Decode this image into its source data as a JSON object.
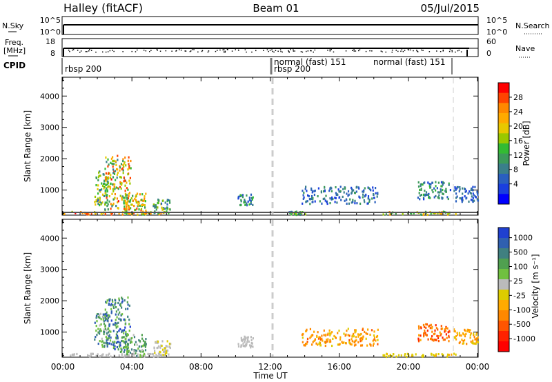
{
  "header": {
    "left": "Halley (fitACF)",
    "center": "Beam 01",
    "right": "05/Jul/2015"
  },
  "panels": {
    "nsky": {
      "left_label": "N.Sky",
      "right_label": "N.Search",
      "ticks_left": [
        "10^5",
        "10^0"
      ],
      "ticks_right": [
        "10^5",
        "10^0"
      ]
    },
    "freq": {
      "left_label_1": "Freq.",
      "left_label_2": "[MHz]",
      "right_label": "Nave",
      "ticks_left": [
        "18",
        "8"
      ],
      "ticks_right": [
        "60",
        "0"
      ]
    },
    "cpid": {
      "label": "CPID",
      "segments": [
        {
          "start": 0,
          "end": 12,
          "text": "rbsp 200"
        },
        {
          "start": 12,
          "end": 12.05,
          "text": "rbsp 200"
        },
        {
          "start": 12.05,
          "end": 19,
          "text": "normal (fast) 151"
        },
        {
          "start": 19,
          "end": 22.6,
          "text": "normal (fast) 151"
        }
      ]
    }
  },
  "colorbars": {
    "power": {
      "title": "Power [dB]",
      "ticks": [
        "28",
        "24",
        "20",
        "16",
        "12",
        "8",
        "4"
      ],
      "colors": [
        "#ff0000",
        "#ff4400",
        "#ff8800",
        "#ffaa00",
        "#e8c800",
        "#99c800",
        "#33bb33",
        "#3c9a5a",
        "#3a7f8a",
        "#2a5fbf",
        "#1a3fdf",
        "#0000ff"
      ]
    },
    "velocity": {
      "title": "Velocity [m s⁻¹]",
      "ticks": [
        "1000",
        "500",
        "100",
        "25",
        "-25",
        "-100",
        "-500",
        "-1000"
      ],
      "colors": [
        "#2040d0",
        "#3060b0",
        "#408080",
        "#50a050",
        "#70c040",
        "#bbbbbb",
        "#ddcc00",
        "#ffaa00",
        "#ff8800",
        "#ff5500",
        "#ff2200",
        "#ff0000"
      ]
    }
  },
  "chart_data": [
    {
      "type": "heatmap",
      "name_hidden": "power",
      "ylabel": "Slant Range [km]",
      "yticks": [
        "1000",
        "2000",
        "3000",
        "4000"
      ],
      "ylim": [
        200,
        4600
      ],
      "xlim": [
        0,
        24
      ],
      "clusters": [
        {
          "t0": 0.0,
          "t1": 5.8,
          "r0": 200,
          "r1": 300,
          "v0": 14,
          "v1": 28
        },
        {
          "t0": 1.8,
          "t1": 2.6,
          "r0": 500,
          "r1": 1600,
          "v0": 6,
          "v1": 20
        },
        {
          "t0": 2.4,
          "t1": 3.9,
          "r0": 350,
          "r1": 2100,
          "v0": 8,
          "v1": 28
        },
        {
          "t0": 3.5,
          "t1": 4.8,
          "r0": 200,
          "r1": 900,
          "v0": 12,
          "v1": 26
        },
        {
          "t0": 5.2,
          "t1": 6.2,
          "r0": 250,
          "r1": 700,
          "v0": 6,
          "v1": 18
        },
        {
          "t0": 10.1,
          "t1": 11.0,
          "r0": 500,
          "r1": 850,
          "v0": 4,
          "v1": 14
        },
        {
          "t0": 13.0,
          "t1": 14.0,
          "r0": 200,
          "r1": 300,
          "v0": 6,
          "v1": 18
        },
        {
          "t0": 13.8,
          "t1": 18.2,
          "r0": 550,
          "r1": 1100,
          "v0": 3,
          "v1": 12
        },
        {
          "t0": 18.5,
          "t1": 22.8,
          "r0": 200,
          "r1": 300,
          "v0": 10,
          "v1": 24
        },
        {
          "t0": 20.5,
          "t1": 22.4,
          "r0": 700,
          "r1": 1250,
          "v0": 4,
          "v1": 14
        },
        {
          "t0": 22.6,
          "t1": 24.0,
          "r0": 600,
          "r1": 1100,
          "v0": 3,
          "v1": 10
        }
      ]
    },
    {
      "type": "heatmap",
      "name_hidden": "velocity",
      "ylabel": "Slant Range [km]",
      "yticks": [
        "1000",
        "2000",
        "3000",
        "4000"
      ],
      "ylim": [
        200,
        4600
      ],
      "xlim": [
        0,
        24
      ],
      "xticks": [
        "00:00",
        "04:00",
        "08:00",
        "12:00",
        "16:00",
        "20:00",
        "00:00"
      ],
      "xlabel": "Time UT",
      "clusters": [
        {
          "t0": 0.0,
          "t1": 5.8,
          "r0": 200,
          "r1": 300,
          "v0": 0,
          "v1": 60
        },
        {
          "t0": 1.8,
          "t1": 2.6,
          "r0": 500,
          "r1": 1600,
          "v0": 100,
          "v1": 900
        },
        {
          "t0": 2.4,
          "t1": 3.9,
          "r0": 350,
          "r1": 2100,
          "v0": 200,
          "v1": 1000
        },
        {
          "t0": 3.5,
          "t1": 4.8,
          "r0": 200,
          "r1": 900,
          "v0": 100,
          "v1": 700
        },
        {
          "t0": 5.2,
          "t1": 6.2,
          "r0": 250,
          "r1": 700,
          "v0": -50,
          "v1": 80
        },
        {
          "t0": 10.1,
          "t1": 11.0,
          "r0": 500,
          "r1": 850,
          "v0": 20,
          "v1": 150
        },
        {
          "t0": 13.8,
          "t1": 18.2,
          "r0": 550,
          "r1": 1100,
          "v0": -600,
          "v1": -120
        },
        {
          "t0": 18.5,
          "t1": 22.8,
          "r0": 200,
          "r1": 300,
          "v0": -200,
          "v1": -30
        },
        {
          "t0": 20.5,
          "t1": 22.4,
          "r0": 700,
          "r1": 1250,
          "v0": -900,
          "v1": -300
        },
        {
          "t0": 22.6,
          "t1": 24.0,
          "r0": 600,
          "r1": 1100,
          "v0": -500,
          "v1": -100
        }
      ]
    }
  ]
}
